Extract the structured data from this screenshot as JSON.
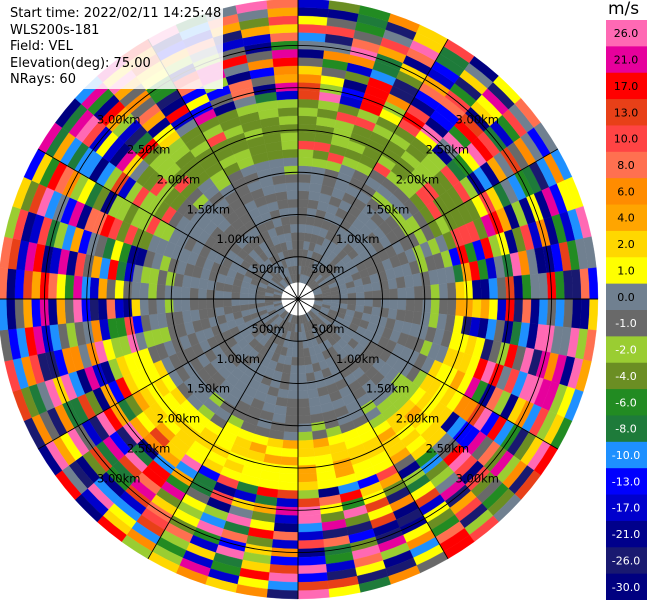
{
  "header": {
    "start_time": "Start time: 2022/02/11 14:25:48",
    "instrument": "WLS200s-181",
    "field": "Field: VEL",
    "elevation": "Elevation(deg): 75.00",
    "nrays": "NRays: 60"
  },
  "chart_data": {
    "type": "heatmap",
    "projection": "polar",
    "n_rays": 60,
    "range_rings_labels": [
      "500m",
      "1.00km",
      "1.50km",
      "2.00km",
      "2.50km",
      "3.00km"
    ],
    "range_rings_km": [
      0.5,
      1.0,
      1.5,
      2.0,
      2.5,
      3.0
    ],
    "max_range_km": 3.55,
    "colorbar": {
      "unit": "m/s",
      "tick_labels": [
        "26.0",
        "21.0",
        "17.0",
        "13.0",
        "10.0",
        "8.0",
        "6.0",
        "4.0",
        "2.0",
        "1.0",
        "0.0",
        "-1.0",
        "-2.0",
        "-4.0",
        "-6.0",
        "-8.0",
        "-10.0",
        "-13.0",
        "-17.0",
        "-21.0",
        "-26.0",
        "-30.0"
      ],
      "colors": [
        "#ff69b4",
        "#e6009c",
        "#ff0000",
        "#e84018",
        "#ff4444",
        "#ff7050",
        "#ff8c00",
        "#ffa500",
        "#ffd700",
        "#ffff00",
        "#708090",
        "#696969",
        "#9acd32",
        "#6b8e23",
        "#228b22",
        "#1e7b3a",
        "#1e90ff",
        "#0000ff",
        "#0000cd",
        "#00008b",
        "#191970",
        "#000080"
      ]
    },
    "inner_region": {
      "max_range_km": 1.9,
      "colors": [
        "#708090",
        "#696969"
      ]
    },
    "south_arc": {
      "range_km": [
        1.3,
        1.9
      ],
      "colors": [
        "#ffff00",
        "#ffd700"
      ]
    },
    "north_ring": {
      "range_km": [
        1.6,
        2.4
      ],
      "colors": [
        "#6b8e23",
        "#9acd32"
      ]
    }
  }
}
